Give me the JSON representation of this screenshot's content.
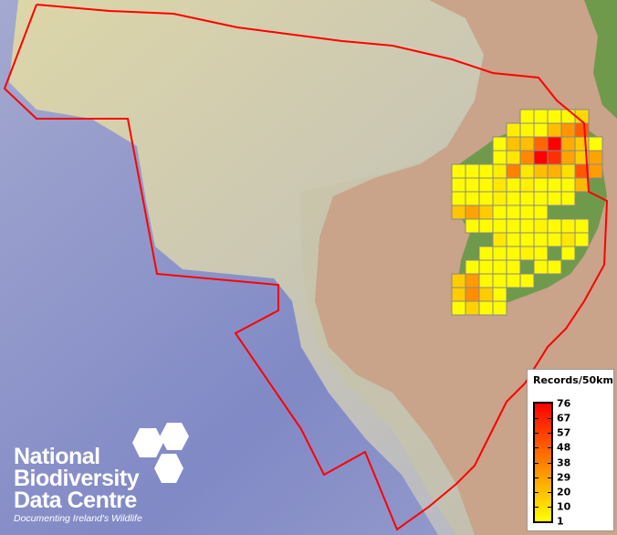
{
  "legend": {
    "title": "Records/50km",
    "ticks": [
      "76",
      "67",
      "57",
      "48",
      "38",
      "29",
      "20",
      "10",
      "1"
    ],
    "min": 1,
    "max": 76,
    "color_low": "#ffff00",
    "color_high": "#ff0000"
  },
  "logo": {
    "line1": "National",
    "line2": "Biodiversity",
    "line3": "Data Centre",
    "tagline": "Documenting Ireland's Wildlife"
  },
  "colors": {
    "boundary": "#ff0000",
    "grid_border": "#888888",
    "ocean": "#8c94c8",
    "shelf": "#d9d3a6",
    "land": "#c9a38a",
    "vegetation": "#6f9a4c"
  },
  "grid_records": [
    [
      null,
      null,
      null,
      null,
      null,
      2,
      2,
      2,
      2,
      12,
      null
    ],
    [
      null,
      null,
      null,
      null,
      6,
      3,
      2,
      20,
      32,
      48,
      null
    ],
    [
      null,
      null,
      null,
      2,
      19,
      20,
      46,
      76,
      25,
      16,
      1
    ],
    [
      null,
      null,
      null,
      2,
      8,
      36,
      76,
      62,
      28,
      16,
      28
    ],
    [
      2,
      2,
      2,
      6,
      38,
      8,
      20,
      24,
      10,
      50,
      30
    ],
    [
      2,
      2,
      2,
      8,
      3,
      5,
      2,
      2,
      2,
      22,
      null
    ],
    [
      2,
      2,
      2,
      5,
      2,
      2,
      2,
      2,
      2,
      null,
      null
    ],
    [
      18,
      28,
      16,
      2,
      2,
      2,
      2,
      null,
      null,
      null,
      null
    ],
    [
      null,
      2,
      2,
      2,
      2,
      2,
      4,
      2,
      3,
      2,
      null
    ],
    [
      null,
      null,
      null,
      8,
      2,
      2,
      2,
      2,
      8,
      2,
      null
    ],
    [
      null,
      null,
      2,
      2,
      2,
      4,
      2,
      null,
      2,
      null,
      null
    ],
    [
      null,
      2,
      2,
      2,
      2,
      null,
      2,
      2,
      null,
      null,
      null
    ],
    [
      16,
      30,
      3,
      2,
      2,
      2,
      null,
      null,
      null,
      null,
      null
    ],
    [
      16,
      34,
      16,
      2,
      null,
      null,
      null,
      null,
      null,
      null,
      null
    ],
    [
      2,
      14,
      2,
      2,
      null,
      null,
      null,
      null,
      null,
      null,
      null
    ]
  ]
}
